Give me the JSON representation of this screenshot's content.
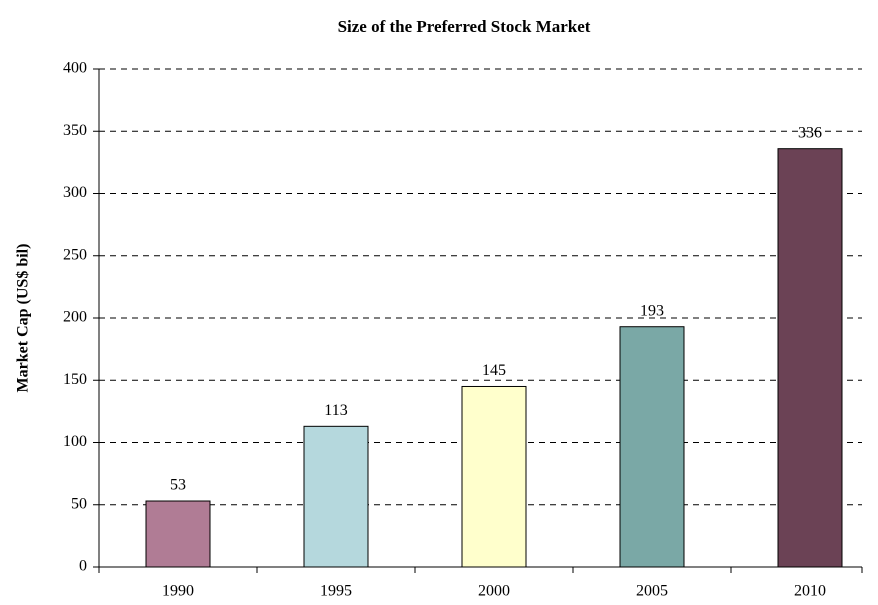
{
  "chart_data": {
    "type": "bar",
    "title": "Size of the Preferred Stock Market",
    "y_label": "Market Cap (US$ bil)",
    "categories": [
      "1990",
      "1995",
      "2000",
      "2005",
      "2010"
    ],
    "values": [
      53,
      113,
      145,
      193,
      336
    ],
    "colors": [
      "#b07c95",
      "#b5d8dd",
      "#ffffcc",
      "#7aa8a6",
      "#6b4255"
    ],
    "ylim": [
      0,
      400
    ],
    "yticks": [
      0,
      50,
      100,
      150,
      200,
      250,
      300,
      350,
      400
    ],
    "grid": true
  }
}
